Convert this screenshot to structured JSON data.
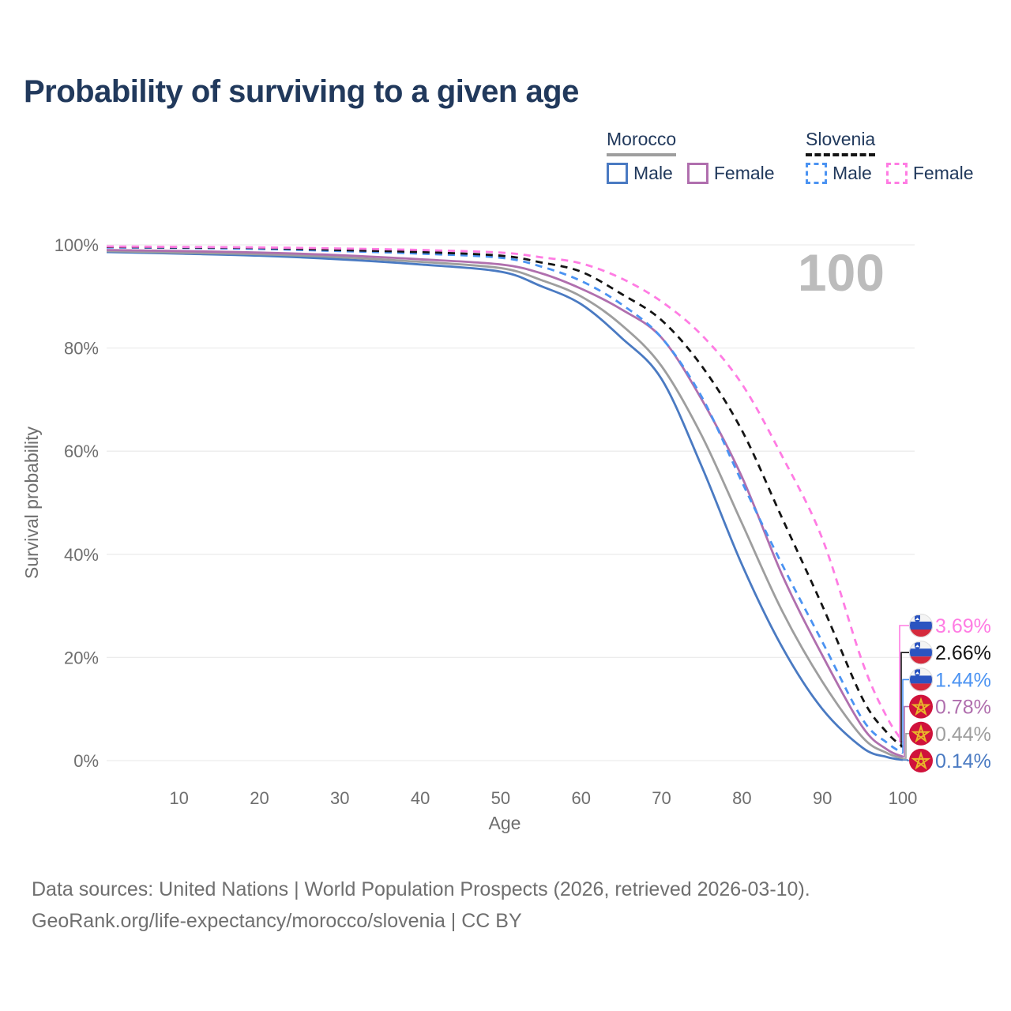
{
  "chart_data": {
    "type": "line",
    "title": "Probability of surviving to a given age",
    "xlabel": "Age",
    "ylabel": "Survival probability",
    "watermark": "100",
    "xlim": [
      1,
      100
    ],
    "ylim": [
      0,
      100
    ],
    "grid": true,
    "legend_position": "top-right",
    "x_ticks": [
      10,
      20,
      30,
      40,
      50,
      60,
      70,
      80,
      90,
      100
    ],
    "y_ticks": [
      {
        "value": 0,
        "label": "0%"
      },
      {
        "value": 20,
        "label": "20%"
      },
      {
        "value": 40,
        "label": "40%"
      },
      {
        "value": 60,
        "label": "60%"
      },
      {
        "value": 80,
        "label": "80%"
      },
      {
        "value": 100,
        "label": "100%"
      }
    ],
    "ages": [
      1,
      10,
      20,
      30,
      40,
      50,
      55,
      60,
      65,
      70,
      75,
      80,
      85,
      90,
      95,
      98,
      100
    ],
    "series": [
      {
        "name": "Slovenia Female",
        "country": "Slovenia",
        "sex": "Female",
        "color": "#ff7ce3",
        "dashed": true,
        "flag": "slovenia",
        "end_label": "3.69%",
        "values": [
          99.7,
          99.6,
          99.5,
          99.3,
          99.0,
          98.5,
          97.6,
          96.4,
          93.5,
          89.0,
          82.5,
          73.0,
          59.0,
          43.0,
          19.0,
          8.5,
          3.69
        ]
      },
      {
        "name": "Slovenia both sexes",
        "country": "Slovenia",
        "sex": "All",
        "color": "#141414",
        "dashed": true,
        "flag": "slovenia",
        "end_label": "2.66%",
        "values": [
          99.6,
          99.5,
          99.4,
          99.0,
          98.6,
          97.9,
          96.6,
          94.8,
          90.5,
          85.4,
          76.5,
          64.0,
          47.0,
          30.0,
          12.0,
          5.5,
          2.66
        ]
      },
      {
        "name": "Slovenia Male",
        "country": "Slovenia",
        "sex": "Male",
        "color": "#4b93f2",
        "dashed": true,
        "flag": "slovenia",
        "end_label": "1.44%",
        "values": [
          99.5,
          99.4,
          99.2,
          98.8,
          98.3,
          97.5,
          95.8,
          93.0,
          88.5,
          82.0,
          70.5,
          54.0,
          38.0,
          23.0,
          8.0,
          3.5,
          1.44
        ]
      },
      {
        "name": "Morocco Female",
        "country": "Morocco",
        "sex": "Female",
        "color": "#b06fae",
        "dashed": false,
        "flag": "morocco",
        "end_label": "0.78%",
        "values": [
          99.0,
          98.8,
          98.5,
          98.0,
          97.2,
          96.2,
          94.5,
          91.5,
          87.5,
          82.0,
          70.0,
          55.0,
          36.0,
          20.4,
          6.5,
          2.2,
          0.78
        ]
      },
      {
        "name": "Morocco both sexes",
        "country": "Morocco",
        "sex": "All",
        "color": "#9e9e9e",
        "dashed": false,
        "flag": "morocco",
        "end_label": "0.44%",
        "values": [
          98.8,
          98.5,
          98.2,
          97.6,
          96.7,
          95.5,
          93.2,
          90.0,
          84.5,
          76.5,
          63.0,
          46.0,
          29.0,
          15.3,
          4.5,
          1.5,
          0.44
        ]
      },
      {
        "name": "Morocco Male",
        "country": "Morocco",
        "sex": "Male",
        "color": "#4a7ac2",
        "dashed": false,
        "flag": "morocco",
        "end_label": "0.14%",
        "values": [
          98.6,
          98.3,
          97.9,
          97.2,
          96.2,
          94.8,
          92.0,
          88.5,
          82.0,
          74.0,
          57.0,
          38.0,
          22.0,
          10.0,
          2.5,
          0.7,
          0.14
        ]
      }
    ]
  },
  "legend": {
    "groups": [
      {
        "label": "Morocco",
        "underline_style": "solid",
        "underline_color": "#9e9e9e",
        "items": [
          {
            "label": "Male",
            "color": "#4a7ac2",
            "dashed": false
          },
          {
            "label": "Female",
            "color": "#b06fae",
            "dashed": false
          }
        ]
      },
      {
        "label": "Slovenia",
        "underline_style": "dashed",
        "underline_color": "#141414",
        "items": [
          {
            "label": "Male",
            "color": "#4b93f2",
            "dashed": true
          },
          {
            "label": "Female",
            "color": "#ff7ce3",
            "dashed": true
          }
        ]
      }
    ]
  },
  "flag_colors": {
    "slovenia_white": "#f4f4f4",
    "slovenia_blue": "#2b54c0",
    "slovenia_red": "#d5293c",
    "morocco_red": "#d0123b",
    "morocco_star": "#e8b82a"
  },
  "style_colors": {
    "title": "#21395c",
    "axis_text": "#6e6e6e",
    "grid": "#ececec",
    "watermark": "#bcbcbc"
  },
  "footer": {
    "line1": "Data sources: United Nations | World Population Prospects (2026, retrieved 2026-03-10).",
    "line2": "GeoRank.org/life-expectancy/morocco/slovenia | CC BY"
  }
}
